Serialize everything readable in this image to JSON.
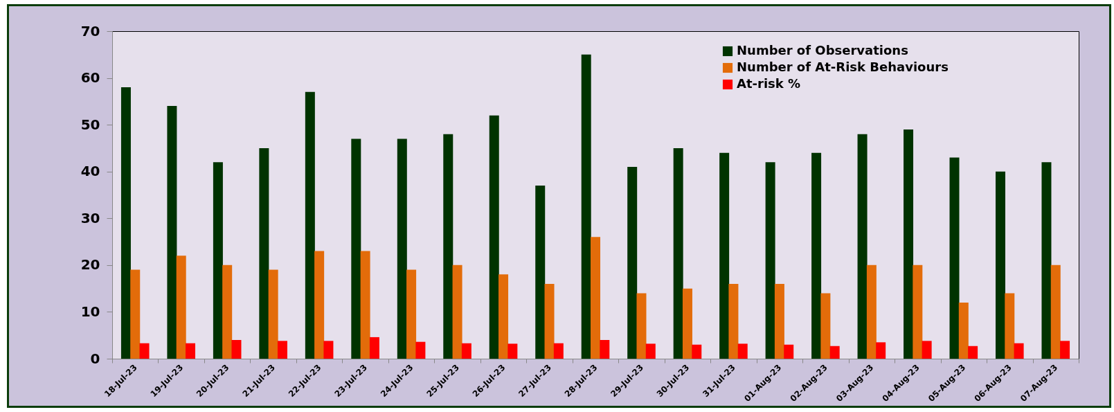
{
  "chart_data": {
    "type": "bar",
    "categories": [
      "18-Jul-23",
      "19-Jul-23",
      "20-Jul-23",
      "21-Jul-23",
      "22-Jul-23",
      "23-Jul-23",
      "24-Jul-23",
      "25-Jul-23",
      "26-Jul-23",
      "27-Jul-23",
      "28-Jul-23",
      "29-Jul-23",
      "30-Jul-23",
      "31-Jul-23",
      "01-Aug-23",
      "02-Aug-23",
      "03-Aug-23",
      "04-Aug-23",
      "05-Aug-23",
      "06-Aug-23",
      "07-Aug-23"
    ],
    "series": [
      {
        "name": "Number of Observations",
        "color": "#003300",
        "values": [
          58,
          54,
          42,
          45,
          57,
          47,
          47,
          48,
          52,
          37,
          65,
          41,
          45,
          44,
          42,
          44,
          48,
          49,
          43,
          40,
          42
        ]
      },
      {
        "name": "Number of At-Risk Behaviours",
        "color": "#e36c0a",
        "values": [
          19,
          22,
          20,
          19,
          23,
          23,
          19,
          20,
          18,
          16,
          26,
          14,
          15,
          16,
          16,
          14,
          20,
          20,
          12,
          14,
          20
        ]
      },
      {
        "name": "At-risk %",
        "color": "#ff0000",
        "values": [
          3.3,
          3.3,
          4.0,
          3.8,
          3.8,
          4.6,
          3.6,
          3.3,
          3.2,
          3.3,
          4.0,
          3.2,
          3.0,
          3.2,
          3.0,
          2.7,
          3.5,
          3.8,
          2.7,
          3.3,
          3.8
        ]
      }
    ],
    "ylim": [
      0,
      70
    ],
    "yticks": [
      0,
      10,
      20,
      30,
      40,
      50,
      60,
      70
    ],
    "grid": false,
    "legend": "top right"
  }
}
